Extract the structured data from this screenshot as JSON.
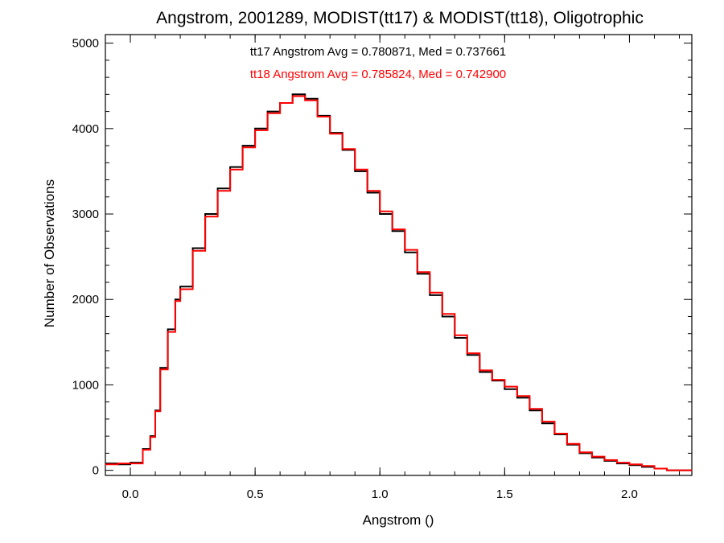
{
  "chart_data": {
    "type": "line",
    "title": "Angstrom, 2001289, MODIST(tt17) & MODIST(tt18), Oligotrophic",
    "xlabel": "Angstrom ()",
    "ylabel": "Number of Observations",
    "xlim": [
      -0.1,
      2.25
    ],
    "ylim": [
      -60,
      5100
    ],
    "xticks": [
      0.0,
      0.5,
      1.0,
      1.5,
      2.0
    ],
    "xtick_labels": [
      "0.0",
      "0.5",
      "1.0",
      "1.5",
      "2.0"
    ],
    "yticks": [
      0,
      1000,
      2000,
      3000,
      4000,
      5000
    ],
    "ytick_labels": [
      "0",
      "1000",
      "2000",
      "3000",
      "4000",
      "5000"
    ],
    "grid": false,
    "style": "step",
    "annotations": [
      {
        "text": "tt17 Angstrom Avg = 0.780871, Med = 0.737661",
        "color": "#000000"
      },
      {
        "text": "tt18 Angstrom Avg = 0.785824, Med = 0.742900",
        "color": "#ff0000"
      }
    ],
    "series": [
      {
        "color": "#000000",
        "x": [
          -0.1,
          -0.05,
          0.0,
          0.05,
          0.08,
          0.1,
          0.12,
          0.15,
          0.18,
          0.2,
          0.25,
          0.3,
          0.35,
          0.4,
          0.45,
          0.5,
          0.55,
          0.6,
          0.65,
          0.7,
          0.75,
          0.8,
          0.85,
          0.9,
          0.95,
          1.0,
          1.05,
          1.1,
          1.15,
          1.2,
          1.25,
          1.3,
          1.35,
          1.4,
          1.45,
          1.5,
          1.55,
          1.6,
          1.65,
          1.7,
          1.75,
          1.8,
          1.85,
          1.9,
          1.95,
          2.0,
          2.05,
          2.1,
          2.15,
          2.2,
          2.25
        ],
        "y": [
          80,
          70,
          90,
          250,
          400,
          700,
          1200,
          1650,
          2000,
          2150,
          2600,
          3000,
          3300,
          3550,
          3800,
          4000,
          4200,
          4300,
          4400,
          4350,
          4150,
          3950,
          3750,
          3500,
          3250,
          3000,
          2800,
          2550,
          2300,
          2050,
          1800,
          1550,
          1350,
          1150,
          1050,
          950,
          850,
          700,
          550,
          420,
          300,
          200,
          150,
          110,
          80,
          60,
          40,
          20,
          0,
          0,
          0
        ]
      },
      {
        "color": "#ff0000",
        "x": [
          -0.1,
          -0.05,
          0.0,
          0.05,
          0.08,
          0.1,
          0.12,
          0.15,
          0.18,
          0.2,
          0.25,
          0.3,
          0.35,
          0.4,
          0.45,
          0.5,
          0.55,
          0.6,
          0.65,
          0.7,
          0.75,
          0.8,
          0.85,
          0.9,
          0.95,
          1.0,
          1.05,
          1.1,
          1.15,
          1.2,
          1.25,
          1.3,
          1.35,
          1.4,
          1.45,
          1.5,
          1.55,
          1.6,
          1.65,
          1.7,
          1.75,
          1.8,
          1.85,
          1.9,
          1.95,
          2.0,
          2.05,
          2.1,
          2.15,
          2.2,
          2.25
        ],
        "y": [
          70,
          80,
          80,
          240,
          390,
          690,
          1180,
          1620,
          1980,
          2120,
          2570,
          2970,
          3270,
          3520,
          3780,
          3980,
          4180,
          4300,
          4380,
          4330,
          4140,
          3940,
          3760,
          3520,
          3270,
          3030,
          2820,
          2580,
          2320,
          2080,
          1830,
          1580,
          1370,
          1170,
          1060,
          980,
          870,
          720,
          570,
          430,
          310,
          210,
          160,
          120,
          90,
          70,
          50,
          20,
          0,
          0,
          0
        ]
      }
    ]
  }
}
